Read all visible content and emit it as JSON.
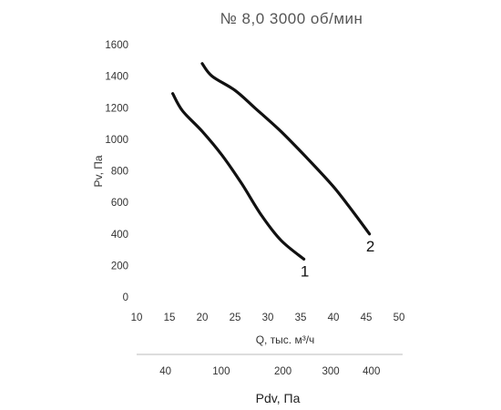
{
  "chart_data": {
    "type": "line",
    "title": "№ 8,0 3000 об/мин",
    "xlabel": "Q, тыс. м³/ч",
    "ylabel": "Pv, Па",
    "xlim": [
      10,
      50
    ],
    "ylim": [
      0,
      1600
    ],
    "x_ticks": [
      "10",
      "15",
      "20",
      "25",
      "30",
      "35",
      "40",
      "45",
      "50"
    ],
    "y_ticks": [
      "0",
      "200",
      "400",
      "600",
      "800",
      "1000",
      "1200",
      "1400",
      "1600"
    ],
    "grid": false,
    "series": [
      {
        "name": "1",
        "points": [
          [
            15.5,
            1290
          ],
          [
            17,
            1180
          ],
          [
            20,
            1050
          ],
          [
            23,
            900
          ],
          [
            26,
            720
          ],
          [
            29,
            520
          ],
          [
            32,
            360
          ],
          [
            35.5,
            240
          ]
        ]
      },
      {
        "name": "2",
        "points": [
          [
            20,
            1480
          ],
          [
            21.5,
            1400
          ],
          [
            25,
            1310
          ],
          [
            28,
            1200
          ],
          [
            32,
            1050
          ],
          [
            36,
            880
          ],
          [
            40,
            700
          ],
          [
            43,
            540
          ],
          [
            45.5,
            400
          ]
        ]
      }
    ],
    "secondary_axis": {
      "label": "Pdv, Па",
      "ticks": [
        {
          "label": "40",
          "q": 14.4
        },
        {
          "label": "100",
          "q": 22.9
        },
        {
          "label": "200",
          "q": 32.3
        },
        {
          "label": "300",
          "q": 39.6
        },
        {
          "label": "400",
          "q": 45.8
        }
      ]
    }
  }
}
